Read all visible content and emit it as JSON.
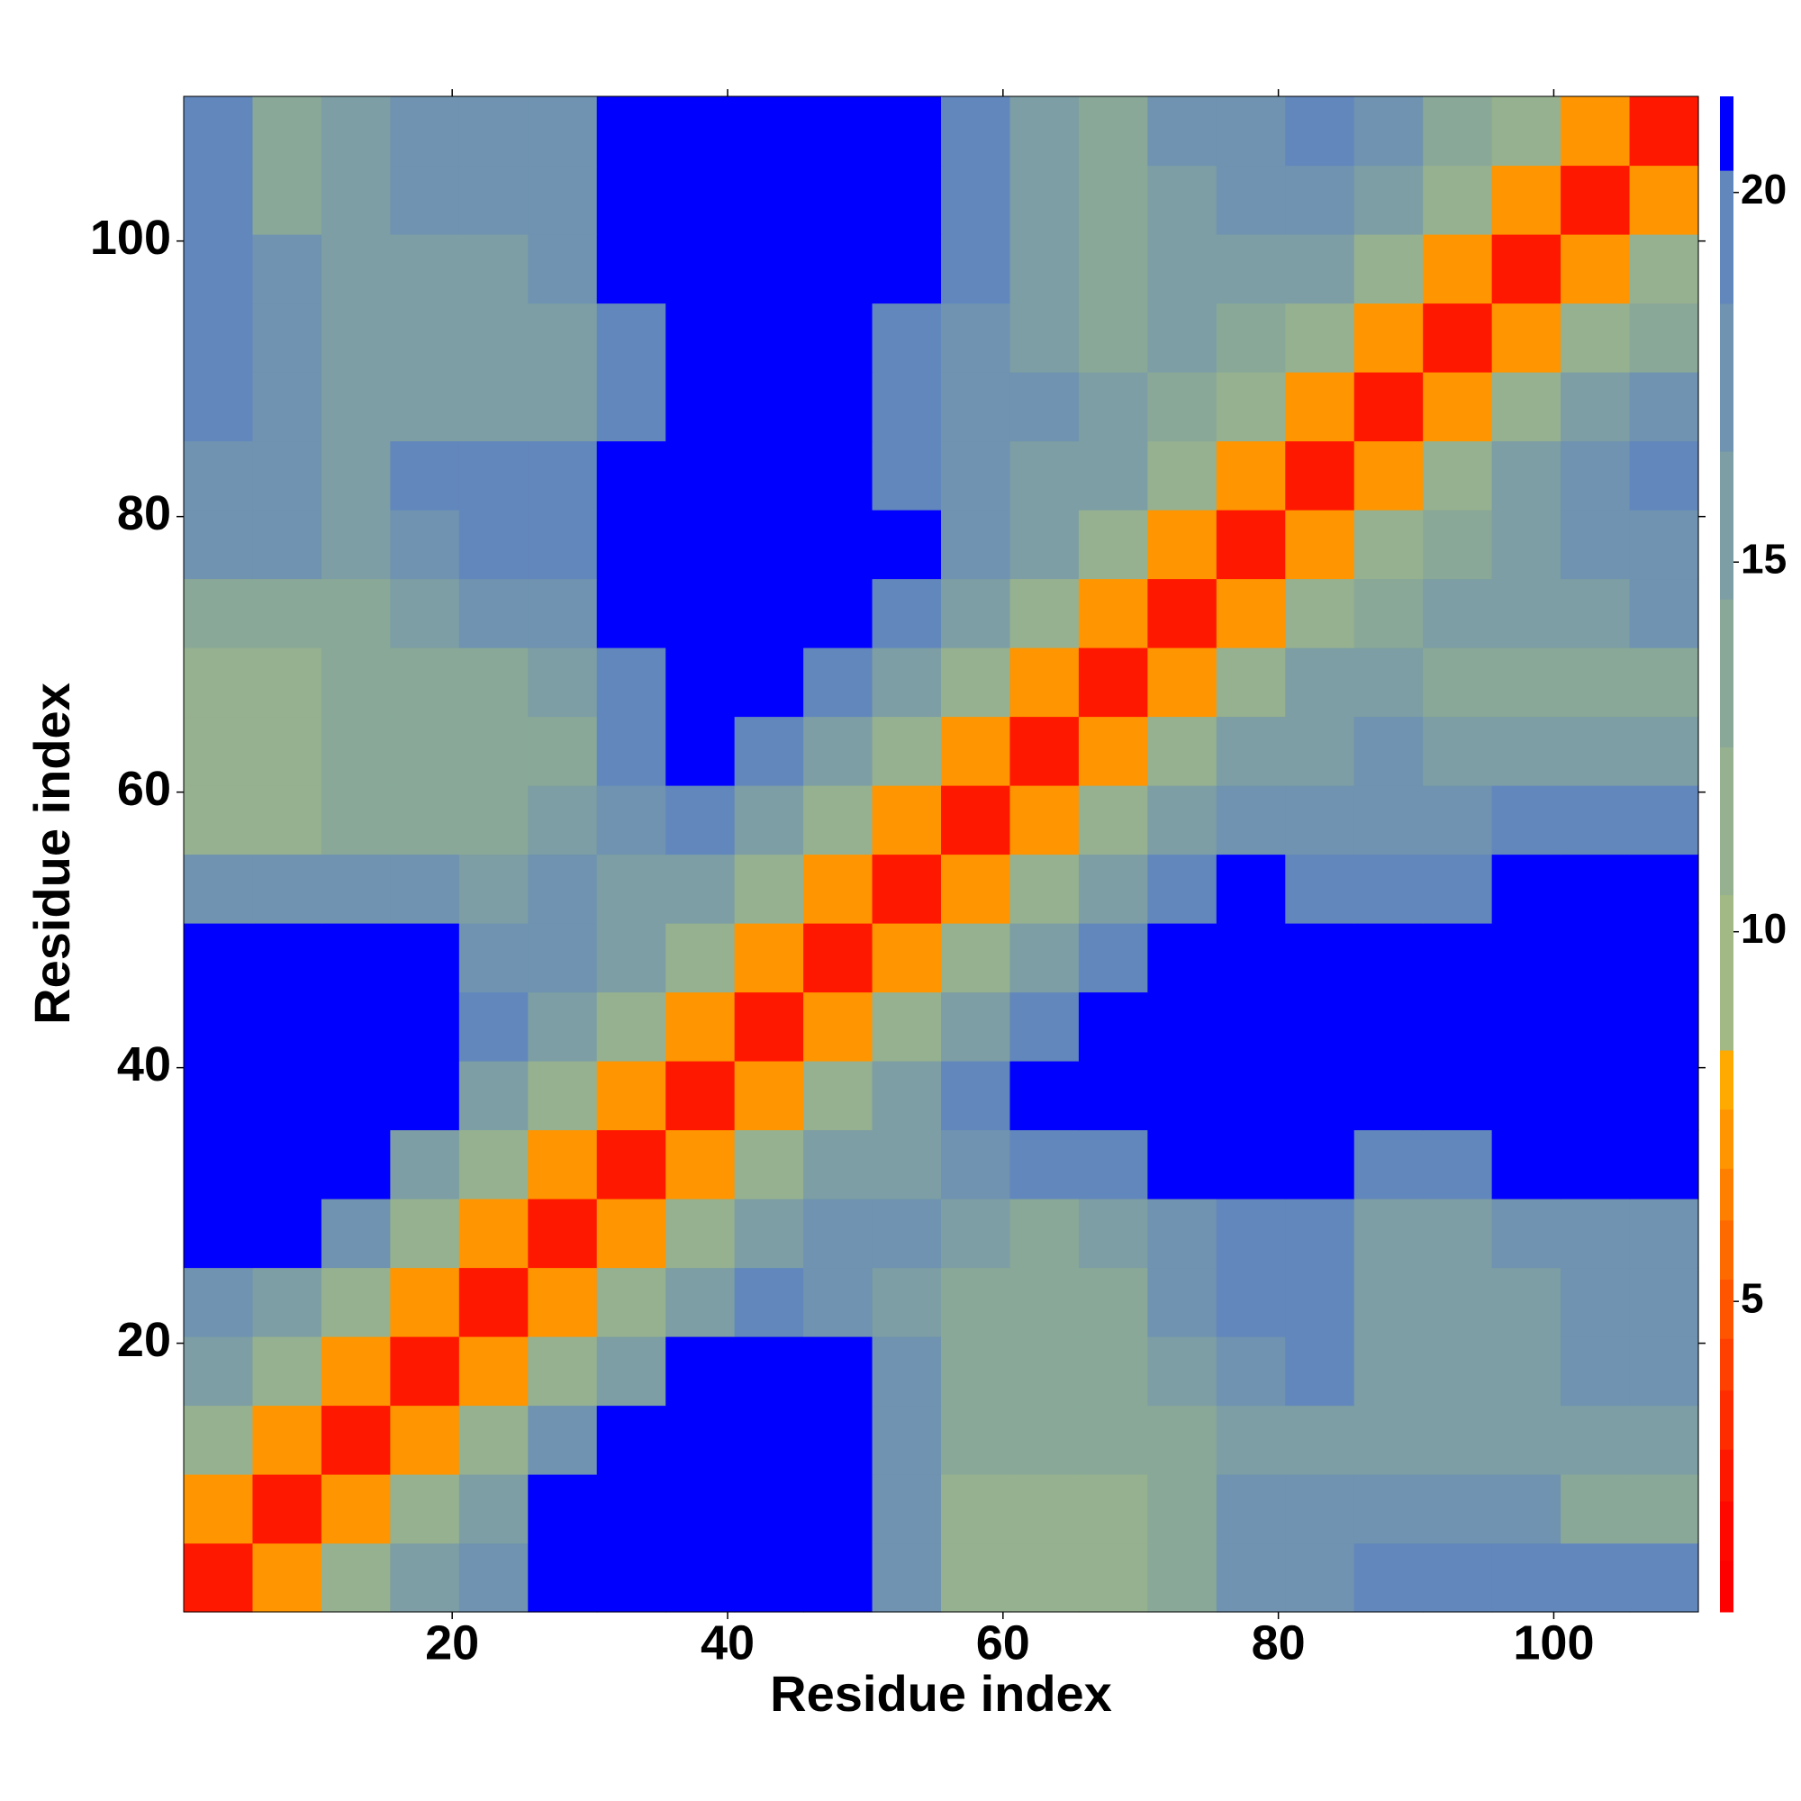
{
  "chart_data": {
    "type": "heatmap",
    "xlabel": "Residue index",
    "ylabel": "Residue index",
    "xlim": [
      0.5,
      110.5
    ],
    "ylim": [
      0.5,
      110.5
    ],
    "xticks": [
      20,
      40,
      60,
      80,
      100
    ],
    "yticks": [
      20,
      40,
      60,
      80,
      100
    ],
    "xbins": [
      0.5,
      5.5,
      10.5,
      15.5,
      20.5,
      25.5,
      30.5,
      35.5,
      40.5,
      45.5,
      50.5,
      55.5,
      60.5,
      65.5,
      70.5,
      75.5,
      80.5,
      85.5,
      90.5,
      95.5,
      100.5,
      105.5,
      110.5
    ],
    "ybins": [
      0.5,
      5.5,
      10.5,
      15.5,
      20.5,
      25.5,
      30.5,
      35.5,
      40.5,
      45.5,
      50.5,
      55.5,
      60.5,
      65.5,
      70.5,
      75.5,
      80.5,
      85.5,
      90.5,
      95.5,
      100.5,
      105.5,
      110.5
    ],
    "values": [
      [
        3,
        7,
        12,
        16,
        17,
        21,
        21,
        21,
        21,
        21,
        18,
        12,
        11,
        12,
        13,
        17,
        17,
        20,
        20,
        20,
        19,
        19
      ],
      [
        7,
        3,
        7,
        12,
        16,
        21,
        21,
        21,
        21,
        21,
        18,
        12,
        11,
        12,
        13,
        17,
        17,
        17,
        17,
        17,
        13,
        13
      ],
      [
        12,
        7,
        3,
        7,
        12,
        18,
        21,
        21,
        21,
        21,
        17,
        13,
        13,
        13,
        13,
        16,
        16,
        16,
        16,
        16,
        16,
        16
      ],
      [
        16,
        12,
        7,
        3,
        7,
        12,
        16,
        21,
        21,
        21,
        17,
        13,
        13,
        13,
        15,
        18,
        20,
        15,
        15,
        15,
        17,
        17
      ],
      [
        17,
        16,
        12,
        7,
        3,
        7,
        12,
        16,
        19,
        18,
        16,
        14,
        14,
        14,
        17,
        20,
        20,
        15,
        15,
        16,
        18,
        18
      ],
      [
        21,
        21,
        18,
        12,
        7,
        3,
        7,
        12,
        16,
        17,
        17,
        15,
        14,
        16,
        17,
        19,
        19,
        16,
        16,
        18,
        18,
        18
      ],
      [
        21,
        21,
        21,
        16,
        12,
        7,
        3,
        7,
        12,
        15,
        16,
        17,
        19,
        20,
        21,
        21,
        21,
        19,
        19,
        21,
        21,
        21
      ],
      [
        21,
        21,
        21,
        21,
        16,
        12,
        7,
        3,
        7,
        12,
        16,
        19,
        21,
        21,
        21,
        21,
        21,
        21,
        21,
        21,
        21,
        21
      ],
      [
        21,
        21,
        21,
        21,
        19,
        16,
        12,
        7,
        3,
        7,
        12,
        16,
        19,
        21,
        21,
        21,
        21,
        21,
        21,
        21,
        21,
        21
      ],
      [
        21,
        21,
        21,
        21,
        18,
        17,
        15,
        12,
        7,
        3,
        7,
        12,
        16,
        19,
        21,
        21,
        21,
        21,
        21,
        21,
        21,
        21
      ],
      [
        18,
        18,
        17,
        17,
        16,
        17,
        16,
        16,
        12,
        7,
        3,
        7,
        12,
        16,
        19,
        21,
        19,
        19,
        19,
        21,
        21,
        21
      ],
      [
        12,
        12,
        13,
        13,
        14,
        15,
        17,
        19,
        16,
        12,
        7,
        3,
        7,
        12,
        16,
        17,
        18,
        18,
        18,
        19,
        19,
        19
      ],
      [
        11,
        11,
        13,
        13,
        14,
        14,
        19,
        21,
        19,
        16,
        12,
        7,
        3,
        7,
        12,
        15,
        16,
        17,
        16,
        16,
        16,
        16
      ],
      [
        12,
        12,
        13,
        13,
        14,
        16,
        20,
        21,
        21,
        19,
        16,
        12,
        7,
        3,
        7,
        12,
        15,
        16,
        13,
        14,
        13,
        14
      ],
      [
        13,
        13,
        13,
        15,
        17,
        17,
        21,
        21,
        21,
        21,
        19,
        16,
        12,
        7,
        3,
        7,
        12,
        14,
        15,
        15,
        16,
        17
      ],
      [
        17,
        17,
        16,
        18,
        20,
        19,
        21,
        21,
        21,
        21,
        21,
        17,
        15,
        12,
        7,
        3,
        7,
        11,
        14,
        16,
        17,
        18
      ],
      [
        17,
        17,
        16,
        20,
        20,
        19,
        21,
        21,
        21,
        21,
        19,
        18,
        16,
        15,
        12,
        7,
        3,
        7,
        11,
        15,
        17,
        19
      ],
      [
        20,
        17,
        16,
        15,
        15,
        16,
        19,
        21,
        21,
        21,
        19,
        18,
        17,
        16,
        14,
        11,
        7,
        3,
        7,
        12,
        15,
        17
      ],
      [
        20,
        17,
        16,
        15,
        15,
        16,
        19,
        21,
        21,
        21,
        19,
        18,
        16,
        13,
        15,
        14,
        11,
        7,
        3,
        7,
        12,
        14
      ],
      [
        20,
        17,
        16,
        15,
        16,
        18,
        21,
        21,
        21,
        21,
        21,
        19,
        16,
        14,
        15,
        16,
        15,
        12,
        7,
        3,
        7,
        12
      ],
      [
        19,
        13,
        16,
        17,
        18,
        18,
        21,
        21,
        21,
        21,
        21,
        19,
        16,
        13,
        16,
        17,
        17,
        15,
        12,
        7,
        3,
        7
      ],
      [
        19,
        13,
        16,
        17,
        18,
        18,
        21,
        21,
        21,
        21,
        21,
        19,
        16,
        14,
        17,
        18,
        19,
        17,
        14,
        12,
        7,
        3
      ]
    ],
    "colorbar": {
      "lim": [
        0.8,
        21.3
      ],
      "ticks": [
        5,
        10,
        15,
        20
      ],
      "bounds": [
        0.8,
        1.5,
        2.3,
        3.0,
        3.8,
        4.5,
        5.3,
        6.1,
        6.8,
        7.6,
        8.4,
        10.5,
        12.5,
        14.5,
        16.5,
        18.5,
        20.3,
        21.3
      ],
      "colors": [
        "#ff0000",
        "#ff0800",
        "#ff1800",
        "#ff2c00",
        "#ff4000",
        "#ff5400",
        "#ff6a00",
        "#ff8000",
        "#ff9500",
        "#ffaa00",
        "#a3b985",
        "#96b18f",
        "#89a898",
        "#7c9ea4",
        "#6f93b0",
        "#6287bc",
        "#0000ff"
      ]
    }
  }
}
